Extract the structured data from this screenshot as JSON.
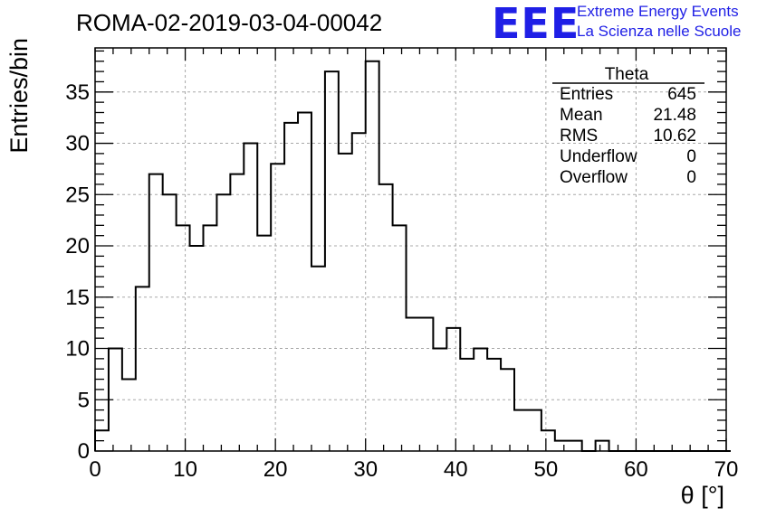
{
  "header": {
    "title": "ROMA-02-2019-03-04-00042",
    "logo_text": "EEE",
    "logo_line1": "Extreme Energy Events",
    "logo_line2": "La Scienza nelle Scuole",
    "logo_color": "#1f1fe6"
  },
  "stats": {
    "name": "Theta",
    "rows": [
      {
        "label": "Entries",
        "value": "645"
      },
      {
        "label": "Mean",
        "value": "21.48"
      },
      {
        "label": "RMS",
        "value": "10.62"
      },
      {
        "label": "Underflow",
        "value": "0"
      },
      {
        "label": "Overflow",
        "value": "0"
      }
    ]
  },
  "chart_data": {
    "type": "bar",
    "histogram": true,
    "title": "ROMA-02-2019-03-04-00042",
    "xlabel": "θ [°]",
    "ylabel": "Entries/bin",
    "xlim": [
      0,
      70
    ],
    "ylim": [
      0,
      39.3
    ],
    "bin_width": 1.5,
    "x_ticks": [
      0,
      10,
      20,
      30,
      40,
      50,
      60,
      70
    ],
    "y_ticks": [
      0,
      5,
      10,
      15,
      20,
      25,
      30,
      35
    ],
    "grid": true,
    "values": [
      2,
      10,
      7,
      16,
      27,
      25,
      22,
      20,
      22,
      25,
      27,
      30,
      21,
      28,
      32,
      33,
      18,
      37,
      29,
      31,
      38,
      26,
      22,
      13,
      13,
      10,
      12,
      9,
      10,
      9,
      8,
      4,
      4,
      2,
      1,
      1,
      0,
      1,
      0,
      0,
      0,
      0,
      0,
      0,
      0,
      0,
      0
    ],
    "line_color": "#000000"
  }
}
